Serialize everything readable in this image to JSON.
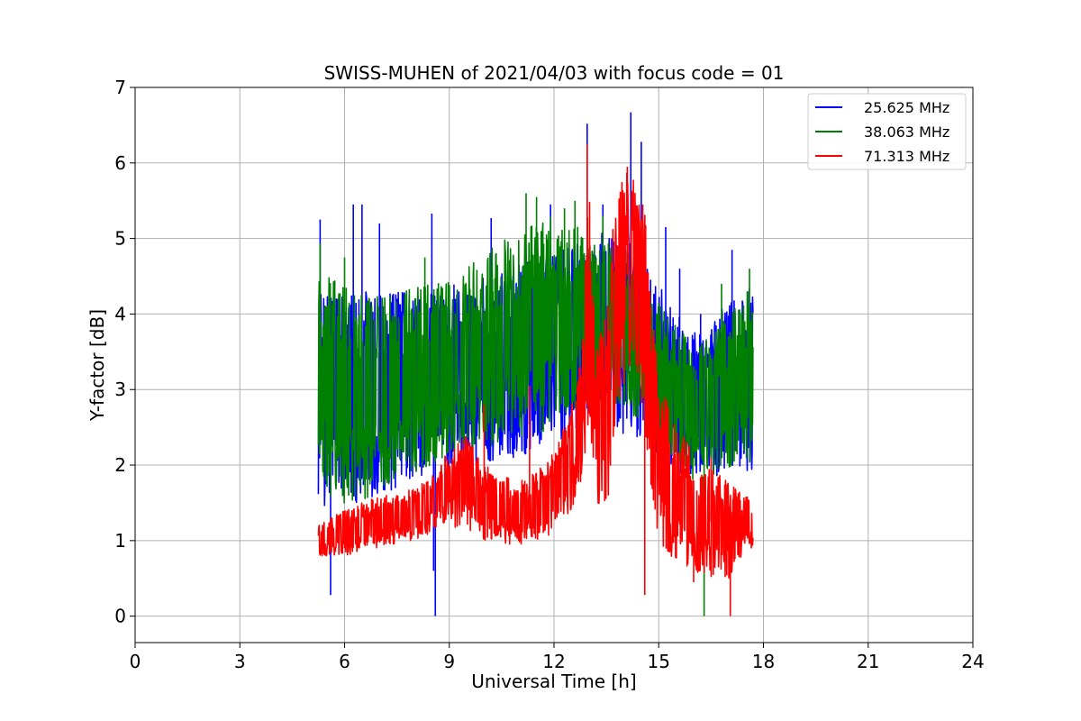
{
  "chart_data": {
    "type": "line",
    "title": "SWISS-MUHEN of 2021/04/03 with focus code = 01",
    "xlabel": "Universal Time [h]",
    "ylabel": "Y-factor [dB]",
    "xlim": [
      0,
      24
    ],
    "ylim": [
      -0.35,
      7
    ],
    "xticks": [
      0,
      3,
      6,
      9,
      12,
      15,
      18,
      21,
      24
    ],
    "yticks": [
      0,
      1,
      2,
      3,
      4,
      5,
      6,
      7
    ],
    "grid": true,
    "legend_position": "top-right",
    "series": [
      {
        "name": "25.625 MHz",
        "color": "#0000ff",
        "band": [
          [
            5.25,
            1.6,
            4.3
          ],
          [
            5.5,
            1.4,
            4.4
          ],
          [
            5.75,
            1.5,
            4.3
          ],
          [
            6.0,
            1.5,
            4.2
          ],
          [
            6.5,
            1.4,
            4.3
          ],
          [
            7.0,
            1.6,
            4.3
          ],
          [
            7.5,
            1.7,
            4.3
          ],
          [
            8.0,
            1.8,
            4.3
          ],
          [
            8.5,
            1.9,
            4.3
          ],
          [
            9.0,
            1.9,
            4.4
          ],
          [
            9.5,
            2.0,
            4.4
          ],
          [
            10.0,
            2.0,
            4.5
          ],
          [
            10.5,
            2.1,
            4.6
          ],
          [
            11.0,
            2.1,
            4.7
          ],
          [
            11.5,
            2.2,
            4.7
          ],
          [
            12.0,
            2.3,
            4.8
          ],
          [
            12.5,
            2.4,
            4.9
          ],
          [
            13.0,
            2.6,
            5.0
          ],
          [
            13.5,
            2.5,
            5.1
          ],
          [
            14.0,
            2.4,
            5.0
          ],
          [
            14.5,
            2.3,
            4.8
          ],
          [
            15.0,
            2.1,
            4.4
          ],
          [
            15.5,
            1.9,
            4.0
          ],
          [
            16.0,
            1.8,
            3.8
          ],
          [
            16.5,
            1.8,
            3.9
          ],
          [
            17.0,
            1.9,
            4.2
          ],
          [
            17.5,
            1.9,
            4.3
          ],
          [
            17.7,
            1.9,
            4.3
          ]
        ],
        "spikes": [
          [
            5.3,
            5.25
          ],
          [
            6.25,
            5.45
          ],
          [
            6.5,
            5.45
          ],
          [
            7.0,
            5.2
          ],
          [
            8.5,
            5.33
          ],
          [
            8.6,
            0.0
          ],
          [
            8.55,
            0.6
          ],
          [
            5.6,
            0.28
          ],
          [
            10.2,
            5.27
          ],
          [
            11.9,
            5.45
          ],
          [
            12.95,
            6.52
          ],
          [
            13.4,
            5.45
          ],
          [
            14.2,
            6.67
          ],
          [
            14.5,
            6.28
          ],
          [
            15.2,
            5.15
          ],
          [
            15.6,
            4.6
          ],
          [
            16.2,
            4.0
          ],
          [
            17.1,
            4.85
          ]
        ]
      },
      {
        "name": "38.063 MHz",
        "color": "#008000",
        "band": [
          [
            5.25,
            1.8,
            4.5
          ],
          [
            5.5,
            1.6,
            4.6
          ],
          [
            5.75,
            1.5,
            4.5
          ],
          [
            6.0,
            1.5,
            4.4
          ],
          [
            6.5,
            1.5,
            4.3
          ],
          [
            7.0,
            1.7,
            4.3
          ],
          [
            7.5,
            1.8,
            4.3
          ],
          [
            8.0,
            1.9,
            4.4
          ],
          [
            8.5,
            2.0,
            4.4
          ],
          [
            9.0,
            2.1,
            4.5
          ],
          [
            9.5,
            2.2,
            4.6
          ],
          [
            10.0,
            2.2,
            4.8
          ],
          [
            10.5,
            2.3,
            5.0
          ],
          [
            11.0,
            2.3,
            5.1
          ],
          [
            11.5,
            2.4,
            5.2
          ],
          [
            12.0,
            2.5,
            5.3
          ],
          [
            12.5,
            2.7,
            5.2
          ],
          [
            13.0,
            3.0,
            5.1
          ],
          [
            13.5,
            2.8,
            5.0
          ],
          [
            14.0,
            2.7,
            4.9
          ],
          [
            14.5,
            2.5,
            4.6
          ],
          [
            15.0,
            2.2,
            4.2
          ],
          [
            15.5,
            2.0,
            3.9
          ],
          [
            16.0,
            1.8,
            3.6
          ],
          [
            16.5,
            1.8,
            3.7
          ],
          [
            17.0,
            1.9,
            4.0
          ],
          [
            17.5,
            2.0,
            4.3
          ],
          [
            17.7,
            2.0,
            4.4
          ]
        ],
        "spikes": [
          [
            5.3,
            4.93
          ],
          [
            6.0,
            4.75
          ],
          [
            8.3,
            4.75
          ],
          [
            11.2,
            5.6
          ],
          [
            11.5,
            5.55
          ],
          [
            12.3,
            5.4
          ],
          [
            12.6,
            5.5
          ],
          [
            13.4,
            5.3
          ],
          [
            15.0,
            4.15
          ],
          [
            16.3,
            0.0
          ],
          [
            16.8,
            4.4
          ],
          [
            17.6,
            4.6
          ]
        ]
      },
      {
        "name": "71.313 MHz",
        "color": "#ff0000",
        "band": [
          [
            5.25,
            0.8,
            1.2
          ],
          [
            5.5,
            0.8,
            1.3
          ],
          [
            6.0,
            0.8,
            1.4
          ],
          [
            6.5,
            0.85,
            1.5
          ],
          [
            7.0,
            0.9,
            1.6
          ],
          [
            7.5,
            0.95,
            1.6
          ],
          [
            8.0,
            1.0,
            1.7
          ],
          [
            8.5,
            1.1,
            1.9
          ],
          [
            9.0,
            1.2,
            2.2
          ],
          [
            9.5,
            1.1,
            2.4
          ],
          [
            10.0,
            1.0,
            2.0
          ],
          [
            10.5,
            0.95,
            1.9
          ],
          [
            11.0,
            0.95,
            1.8
          ],
          [
            11.5,
            1.0,
            1.9
          ],
          [
            12.0,
            1.1,
            2.2
          ],
          [
            12.5,
            1.4,
            2.8
          ],
          [
            12.8,
            1.8,
            3.8
          ],
          [
            13.0,
            2.5,
            5.8
          ],
          [
            13.2,
            1.5,
            3.5
          ],
          [
            13.5,
            1.2,
            4.2
          ],
          [
            13.8,
            2.8,
            5.7
          ],
          [
            14.0,
            3.0,
            5.9
          ],
          [
            14.3,
            3.5,
            5.8
          ],
          [
            14.6,
            2.5,
            5.4
          ],
          [
            14.8,
            1.5,
            4.2
          ],
          [
            15.0,
            1.0,
            3.2
          ],
          [
            15.5,
            0.7,
            2.5
          ],
          [
            16.0,
            0.6,
            2.2
          ],
          [
            16.5,
            0.5,
            2.0
          ],
          [
            17.0,
            0.5,
            1.8
          ],
          [
            17.5,
            0.9,
            1.6
          ],
          [
            17.7,
            0.9,
            1.5
          ]
        ],
        "spikes": [
          [
            10.0,
            2.8
          ],
          [
            11.3,
            3.05
          ],
          [
            12.95,
            6.25
          ],
          [
            14.1,
            5.95
          ],
          [
            14.5,
            3.9
          ],
          [
            14.6,
            0.28
          ],
          [
            16.0,
            0.45
          ],
          [
            17.05,
            0.0
          ],
          [
            16.5,
            2.1
          ]
        ]
      }
    ]
  }
}
